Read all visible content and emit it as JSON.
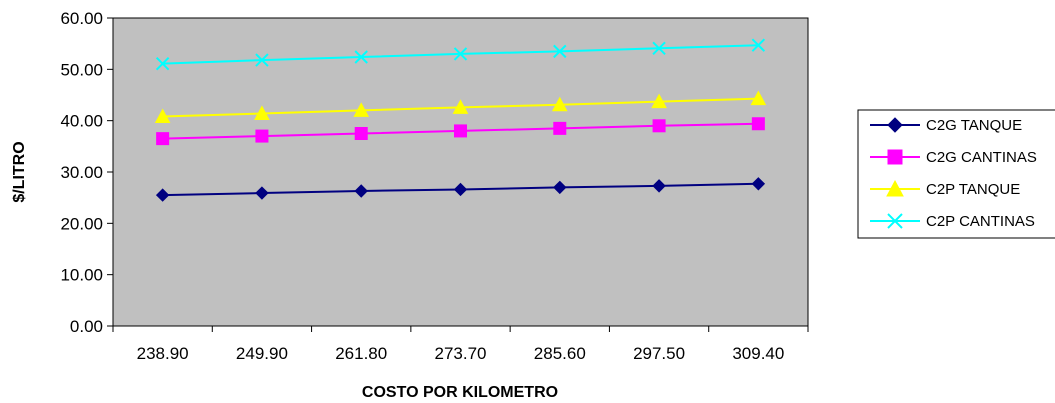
{
  "chart_data": {
    "type": "line",
    "title": "",
    "xlabel": "COSTO POR KILOMETRO",
    "ylabel": "$/LITRO",
    "categories": [
      "238.90",
      "249.90",
      "261.80",
      "273.70",
      "285.60",
      "297.50",
      "309.40"
    ],
    "ylim": [
      0,
      60
    ],
    "yticks": [
      "0.00",
      "10.00",
      "20.00",
      "30.00",
      "40.00",
      "50.00",
      "60.00"
    ],
    "grid": false,
    "plot_background": "#c0c0c0",
    "legend_position": "right",
    "series": [
      {
        "name": "C2G TANQUE",
        "color": "#000080",
        "marker": "diamond",
        "values": [
          25.5,
          25.9,
          26.3,
          26.6,
          27.0,
          27.3,
          27.7
        ]
      },
      {
        "name": "C2G CANTINAS",
        "color": "#ff00ff",
        "marker": "square",
        "values": [
          36.5,
          37.0,
          37.5,
          38.0,
          38.5,
          39.0,
          39.4
        ]
      },
      {
        "name": "C2P TANQUE",
        "color": "#ffff00",
        "marker": "triangle",
        "values": [
          40.8,
          41.4,
          42.0,
          42.6,
          43.1,
          43.7,
          44.3
        ]
      },
      {
        "name": "C2P CANTINAS",
        "color": "#00ffff",
        "marker": "x",
        "values": [
          51.1,
          51.8,
          52.4,
          53.0,
          53.5,
          54.1,
          54.7
        ]
      }
    ]
  }
}
